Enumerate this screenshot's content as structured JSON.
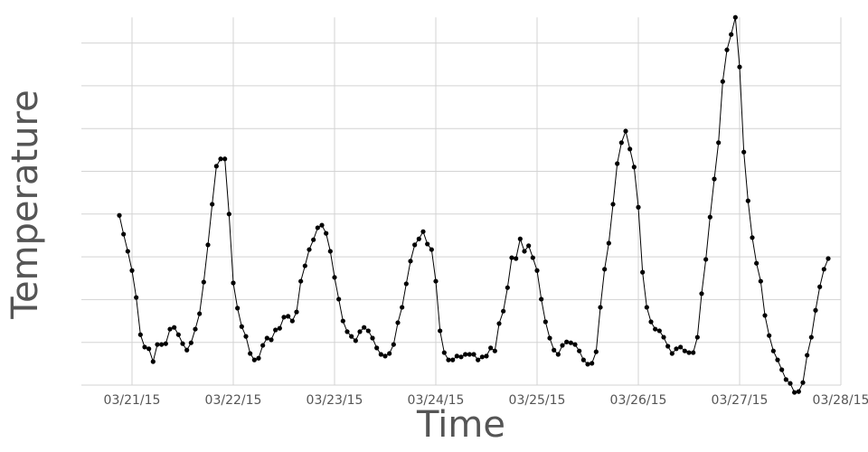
{
  "chart_data": {
    "type": "line",
    "x_label": "Time",
    "y_label": "Temperature",
    "xlim": [
      -12,
      168
    ],
    "xticks": [
      {
        "value": 0,
        "label": "03/21/15"
      },
      {
        "value": 24,
        "label": "03/22/15"
      },
      {
        "value": 48,
        "label": "03/23/15"
      },
      {
        "value": 72,
        "label": "03/24/15"
      },
      {
        "value": 96,
        "label": "03/25/15"
      },
      {
        "value": 120,
        "label": "03/26/15"
      },
      {
        "value": 144,
        "label": "03/27/15"
      },
      {
        "value": 168,
        "label": "03/28/15"
      }
    ],
    "ylim": [
      -0.2,
      8.6
    ],
    "ygrid": [
      0,
      1,
      2,
      3,
      4,
      5,
      6,
      7,
      8
    ],
    "grid": true,
    "color": "#000000",
    "x": [
      -3,
      -2,
      -1,
      0,
      1,
      2,
      3,
      4,
      5,
      6,
      7,
      8,
      9,
      10,
      11,
      12,
      13,
      14,
      15,
      16,
      17,
      18,
      19,
      20,
      21,
      22,
      23,
      24,
      25,
      26,
      27,
      28,
      29,
      30,
      31,
      32,
      33,
      34,
      35,
      36,
      37,
      38,
      39,
      40,
      41,
      42,
      43,
      44,
      45,
      46,
      47,
      48,
      49,
      50,
      51,
      52,
      53,
      54,
      55,
      56,
      57,
      58,
      59,
      60,
      61,
      62,
      63,
      64,
      65,
      66,
      67,
      68,
      69,
      70,
      71,
      72,
      73,
      74,
      75,
      76,
      77,
      78,
      79,
      80,
      81,
      82,
      83,
      84,
      85,
      86,
      87,
      88,
      89,
      90,
      91,
      92,
      93,
      94,
      95,
      96,
      97,
      98,
      99,
      100,
      101,
      102,
      103,
      104,
      105,
      106,
      107,
      108,
      109,
      110,
      111,
      112,
      113,
      114,
      115,
      116,
      117,
      118,
      119,
      120,
      121,
      122,
      123,
      124,
      125,
      126,
      127,
      128,
      129,
      130,
      131,
      132,
      133,
      134,
      135,
      136,
      137,
      138,
      139,
      140,
      141,
      142,
      143,
      144,
      145,
      146,
      147,
      148,
      149,
      150,
      151,
      152,
      153,
      154,
      155,
      156,
      157,
      158,
      159,
      160,
      161,
      162,
      163,
      164,
      165
    ],
    "values": [
      3.97,
      3.53,
      3.13,
      2.68,
      2.05,
      1.18,
      0.89,
      0.85,
      0.55,
      0.95,
      0.95,
      0.97,
      1.31,
      1.35,
      1.18,
      0.97,
      0.82,
      0.99,
      1.31,
      1.67,
      2.41,
      3.28,
      4.23,
      5.12,
      5.29,
      5.29,
      4.0,
      2.39,
      1.8,
      1.37,
      1.14,
      0.74,
      0.59,
      0.63,
      0.93,
      1.1,
      1.06,
      1.29,
      1.33,
      1.59,
      1.61,
      1.5,
      1.71,
      2.43,
      2.79,
      3.17,
      3.4,
      3.68,
      3.74,
      3.55,
      3.13,
      2.52,
      2.01,
      1.5,
      1.25,
      1.14,
      1.04,
      1.25,
      1.35,
      1.27,
      1.1,
      0.87,
      0.72,
      0.68,
      0.74,
      0.95,
      1.46,
      1.82,
      2.37,
      2.9,
      3.28,
      3.42,
      3.59,
      3.3,
      3.17,
      2.43,
      1.27,
      0.76,
      0.59,
      0.59,
      0.68,
      0.66,
      0.72,
      0.72,
      0.72,
      0.59,
      0.66,
      0.68,
      0.87,
      0.8,
      1.44,
      1.73,
      2.28,
      2.98,
      2.96,
      3.42,
      3.13,
      3.26,
      2.98,
      2.68,
      2.01,
      1.48,
      1.1,
      0.82,
      0.72,
      0.93,
      1.01,
      0.99,
      0.95,
      0.8,
      0.59,
      0.49,
      0.51,
      0.78,
      1.82,
      2.71,
      3.32,
      4.23,
      5.18,
      5.67,
      5.94,
      5.52,
      5.1,
      4.16,
      2.64,
      1.82,
      1.48,
      1.31,
      1.27,
      1.12,
      0.91,
      0.74,
      0.85,
      0.89,
      0.8,
      0.76,
      0.76,
      1.12,
      2.14,
      2.94,
      3.93,
      4.82,
      5.67,
      7.1,
      7.84,
      8.2,
      8.6,
      7.44,
      5.45,
      4.31,
      3.45,
      2.85,
      2.43,
      1.63,
      1.16,
      0.8,
      0.59,
      0.36,
      0.13,
      0.04,
      -0.17,
      -0.15,
      0.06,
      0.7,
      1.12,
      1.75,
      2.3,
      2.71,
      2.96
    ]
  }
}
